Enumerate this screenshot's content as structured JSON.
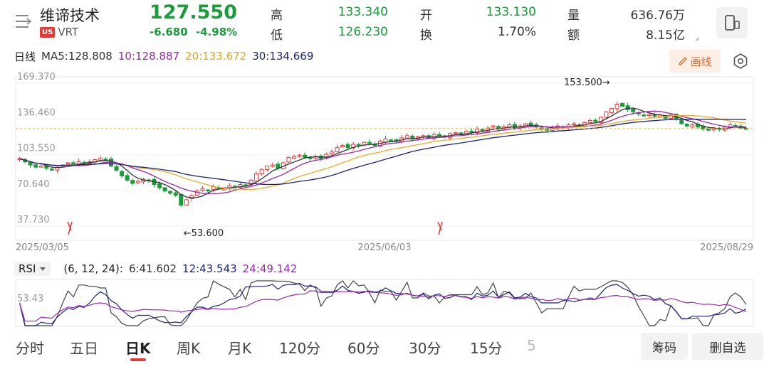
{
  "stock": {
    "name": "维谛技术",
    "market_badge": "US",
    "ticker": "VRT",
    "price": "127.550",
    "change": "-6.680",
    "change_pct": "-4.98%"
  },
  "quote": {
    "high_label": "高",
    "high": "133.340",
    "low_label": "低",
    "low": "126.230",
    "open_label": "开",
    "open": "133.130",
    "turnover_label": "换",
    "turnover": "1.70%",
    "volume_label": "量",
    "volume": "636.76万",
    "amount_label": "额",
    "amount": "8.15亿"
  },
  "ma": {
    "period_label": "日线",
    "ma5": "MA5:128.808",
    "ma10": "10:128.887",
    "ma20": "20:133.672",
    "ma30": "30:134.669"
  },
  "toolbar": {
    "draw_label": "画线",
    "draw_icon": "pencil-icon",
    "settings_icon": "settings-icon",
    "device_icon": "phone-icon"
  },
  "colors": {
    "up": "#e53935",
    "down": "#1a9c3a",
    "ma5": "#333333",
    "ma10": "#9c27b0",
    "ma20": "#f5a623",
    "ma30": "#1a237e",
    "rsi6": "#444444",
    "rsi12": "#1a237e",
    "rsi24": "#9c27b0"
  },
  "chart_data": [
    {
      "type": "candlestick",
      "title": "",
      "y_ticks": [
        "169.370",
        "136.460",
        "103.550",
        "70.640",
        "37.730"
      ],
      "ylim": [
        37.73,
        169.37
      ],
      "x_ticks": [
        "2025/03/05",
        "2025/06/03",
        "2025/08/29"
      ],
      "max_annotation": "153.500→",
      "min_annotation": "←53.600",
      "current_price": 127.55,
      "ex_marks": [
        "03/07",
        "06/05"
      ],
      "close_series": [
        100,
        97,
        94,
        92,
        93,
        91,
        90,
        92,
        94,
        96,
        95,
        97,
        96,
        97,
        99,
        100,
        99,
        93,
        89,
        84,
        80,
        77,
        79,
        81,
        80,
        76,
        73,
        70,
        68,
        66,
        57,
        62,
        66,
        70,
        72,
        71,
        74,
        72,
        73,
        75,
        74,
        76,
        75,
        80,
        86,
        90,
        93,
        94,
        91,
        96,
        101,
        102,
        103,
        101,
        100,
        102,
        100,
        104,
        106,
        110,
        112,
        110,
        113,
        112,
        115,
        114,
        112,
        116,
        118,
        117,
        116,
        119,
        121,
        118,
        120,
        121,
        119,
        122,
        121,
        120,
        123,
        124,
        122,
        125,
        124,
        127,
        126,
        128,
        130,
        127,
        129,
        131,
        128,
        130,
        132,
        131,
        129,
        127,
        126,
        128,
        130,
        129,
        131,
        132,
        130,
        133,
        135,
        134,
        138,
        143,
        146,
        150,
        148,
        145,
        143,
        141,
        140,
        141,
        139,
        140,
        137,
        140,
        136,
        132,
        130,
        131,
        129,
        127,
        126,
        128,
        127,
        129,
        131,
        130,
        128,
        127.55
      ],
      "series": [
        {
          "name": "MA5",
          "last": 128.808
        },
        {
          "name": "MA10",
          "last": 128.887
        },
        {
          "name": "MA20",
          "last": 133.672
        },
        {
          "name": "MA30",
          "last": 134.669
        }
      ]
    },
    {
      "type": "line",
      "title": "RSI",
      "params": "(6, 12, 24):",
      "y_ticks": [
        "53.43"
      ],
      "series": [
        {
          "name": "6:41.602",
          "last": 41.602
        },
        {
          "name": "12:43.543",
          "last": 43.543
        },
        {
          "name": "24:49.142",
          "last": 49.142
        }
      ]
    }
  ],
  "rsi": {
    "selector": "RSI",
    "params": "(6, 12, 24):",
    "r6": "6:41.602",
    "r12": "12:43.543",
    "r24": "24:49.142"
  },
  "tabs": [
    "分时",
    "五日",
    "日K",
    "周K",
    "月K",
    "120分",
    "60分",
    "30分",
    "15分",
    "5"
  ],
  "chips": {
    "chips_label": "筹码",
    "watchlist_label": "删自选"
  }
}
